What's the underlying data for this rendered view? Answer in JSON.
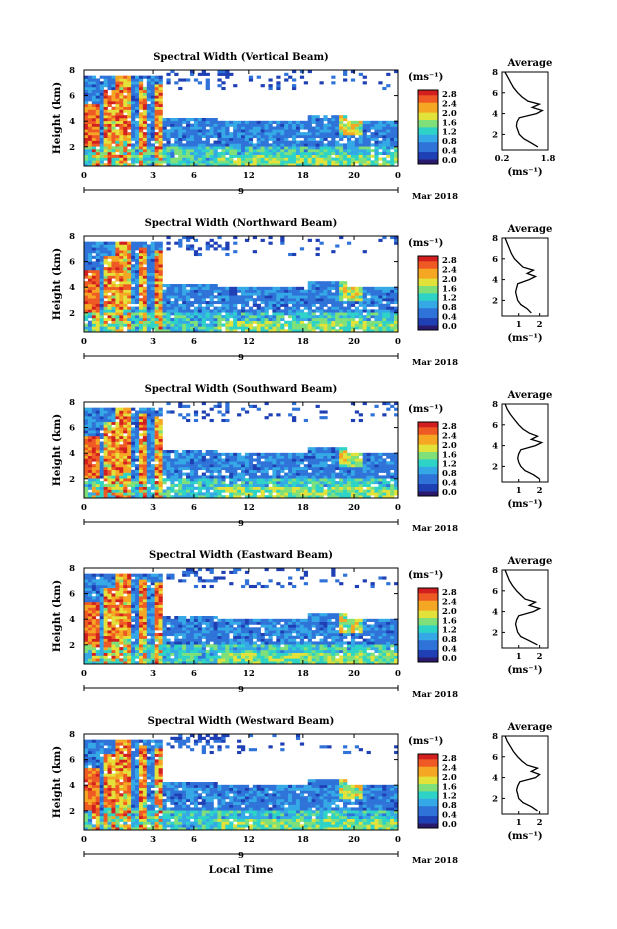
{
  "figure": {
    "xlabel": "Local Time",
    "date_label": "Mar 2018",
    "day_label": "9",
    "colorbar_unit": "(ms⁻¹)",
    "colorbar_ticks": [
      "2.8",
      "2.4",
      "2.0",
      "1.6",
      "1.2",
      "0.8",
      "0.4",
      "0.0"
    ],
    "colormap": [
      "#2a1a6e",
      "#1f3fb5",
      "#2f73d9",
      "#35a8e6",
      "#2ed3c8",
      "#7fe07a",
      "#e3e23a",
      "#f5a623",
      "#ef5a24",
      "#d21f1f"
    ],
    "profile_title": "Average",
    "profile_xunit": "(ms⁻¹)"
  },
  "chart_data": [
    {
      "type": "heatmap",
      "title": "Spectral Width (Vertical Beam)",
      "ylabel": "Height (km)",
      "x_ticks": [
        "0",
        "3",
        "6",
        "12",
        "18",
        "20",
        "0"
      ],
      "x_range_hours": [
        0,
        24
      ],
      "y_ticks": [
        "2",
        "4",
        "6",
        "8"
      ],
      "y_range_km": [
        0.5,
        8
      ],
      "colorbar_range": [
        0,
        3.0
      ],
      "profile": {
        "x_ticks": [
          "0.2",
          "1.8"
        ],
        "xlim": [
          0.2,
          1.8
        ],
        "y_ticks": [
          "2",
          "4",
          "6",
          "8"
        ],
        "ylim": [
          0.5,
          8
        ],
        "heights": [
          0.8,
          1.2,
          1.6,
          2.0,
          2.4,
          2.8,
          3.2,
          3.6,
          4.0,
          4.3,
          4.6,
          4.9,
          5.2,
          5.6,
          6.0,
          6.5,
          7.0,
          7.5,
          8.0
        ],
        "values": [
          1.45,
          1.2,
          0.95,
          0.8,
          0.75,
          0.7,
          0.72,
          0.8,
          1.4,
          1.6,
          1.25,
          1.5,
          1.1,
          0.9,
          0.75,
          0.6,
          0.5,
          0.4,
          0.3
        ]
      }
    },
    {
      "type": "heatmap",
      "title": "Spectral Width (Northward Beam)",
      "ylabel": "Height (km)",
      "x_ticks": [
        "0",
        "3",
        "6",
        "12",
        "18",
        "20",
        "0"
      ],
      "x_range_hours": [
        0,
        24
      ],
      "y_ticks": [
        "2",
        "4",
        "6",
        "8"
      ],
      "y_range_km": [
        0.5,
        8
      ],
      "colorbar_range": [
        0,
        3.0
      ],
      "profile": {
        "x_ticks": [
          "1",
          "2"
        ],
        "xlim": [
          0.2,
          2.4
        ],
        "y_ticks": [
          "2",
          "4",
          "6",
          "8"
        ],
        "ylim": [
          0.5,
          8
        ],
        "heights": [
          0.8,
          1.2,
          1.6,
          2.0,
          2.4,
          2.8,
          3.2,
          3.6,
          4.0,
          4.3,
          4.6,
          4.9,
          5.2,
          5.6,
          6.0,
          6.5,
          7.0,
          7.5,
          8.0
        ],
        "values": [
          1.6,
          1.4,
          1.1,
          0.95,
          0.9,
          0.85,
          0.9,
          0.95,
          1.5,
          1.8,
          1.4,
          1.7,
          1.2,
          1.0,
          0.8,
          0.65,
          0.55,
          0.45,
          0.35
        ]
      }
    },
    {
      "type": "heatmap",
      "title": "Spectral Width (Southward Beam)",
      "ylabel": "Height (km)",
      "x_ticks": [
        "0",
        "3",
        "6",
        "12",
        "18",
        "20",
        "0"
      ],
      "x_range_hours": [
        0,
        24
      ],
      "y_ticks": [
        "2",
        "4",
        "6",
        "8"
      ],
      "y_range_km": [
        0.5,
        8
      ],
      "colorbar_range": [
        0,
        3.0
      ],
      "profile": {
        "x_ticks": [
          "1",
          "2"
        ],
        "xlim": [
          0.2,
          2.4
        ],
        "y_ticks": [
          "2",
          "4",
          "6",
          "8"
        ],
        "ylim": [
          0.5,
          8
        ],
        "heights": [
          0.8,
          1.2,
          1.6,
          2.0,
          2.4,
          2.8,
          3.2,
          3.6,
          4.0,
          4.3,
          4.6,
          4.9,
          5.2,
          5.6,
          6.0,
          6.5,
          7.0,
          7.5,
          8.0
        ],
        "values": [
          2.0,
          1.7,
          1.3,
          1.1,
          1.0,
          0.95,
          1.0,
          1.1,
          1.8,
          2.1,
          1.6,
          1.9,
          1.5,
          1.2,
          1.0,
          0.8,
          0.6,
          0.45,
          0.35
        ]
      }
    },
    {
      "type": "heatmap",
      "title": "Spectral Width (Eastward Beam)",
      "ylabel": "Height (km)",
      "x_ticks": [
        "0",
        "3",
        "6",
        "12",
        "18",
        "20",
        "0"
      ],
      "x_range_hours": [
        0,
        24
      ],
      "y_ticks": [
        "2",
        "4",
        "6",
        "8"
      ],
      "y_range_km": [
        0.5,
        8
      ],
      "colorbar_range": [
        0,
        3.0
      ],
      "profile": {
        "x_ticks": [
          "1",
          "2"
        ],
        "xlim": [
          0.2,
          2.4
        ],
        "y_ticks": [
          "2",
          "4",
          "6",
          "8"
        ],
        "ylim": [
          0.5,
          8
        ],
        "heights": [
          0.8,
          1.2,
          1.6,
          2.0,
          2.4,
          2.8,
          3.2,
          3.6,
          4.0,
          4.3,
          4.6,
          4.9,
          5.2,
          5.6,
          6.0,
          6.5,
          7.0,
          7.5,
          8.0
        ],
        "values": [
          1.9,
          1.5,
          1.1,
          0.95,
          0.9,
          0.85,
          0.9,
          1.0,
          1.7,
          2.0,
          1.5,
          1.8,
          1.3,
          1.1,
          0.9,
          0.7,
          0.55,
          0.45,
          0.35
        ]
      }
    },
    {
      "type": "heatmap",
      "title": "Spectral Width (Westward Beam)",
      "ylabel": "Height (km)",
      "x_ticks": [
        "0",
        "3",
        "6",
        "12",
        "18",
        "20",
        "0"
      ],
      "x_range_hours": [
        0,
        24
      ],
      "y_ticks": [
        "2",
        "4",
        "6",
        "8"
      ],
      "y_range_km": [
        0.5,
        8
      ],
      "colorbar_range": [
        0,
        3.0
      ],
      "profile": {
        "x_ticks": [
          "1",
          "2"
        ],
        "xlim": [
          0.2,
          2.4
        ],
        "y_ticks": [
          "2",
          "4",
          "6",
          "8"
        ],
        "ylim": [
          0.5,
          8
        ],
        "heights": [
          0.8,
          1.2,
          1.6,
          2.0,
          2.4,
          2.8,
          3.2,
          3.6,
          4.0,
          4.3,
          4.6,
          4.9,
          5.2,
          5.6,
          6.0,
          6.5,
          7.0,
          7.5,
          8.0
        ],
        "values": [
          1.9,
          1.6,
          1.2,
          1.0,
          0.95,
          0.9,
          0.95,
          1.05,
          1.8,
          2.0,
          1.6,
          1.9,
          1.4,
          1.15,
          0.95,
          0.75,
          0.6,
          0.45,
          0.35
        ]
      }
    }
  ]
}
